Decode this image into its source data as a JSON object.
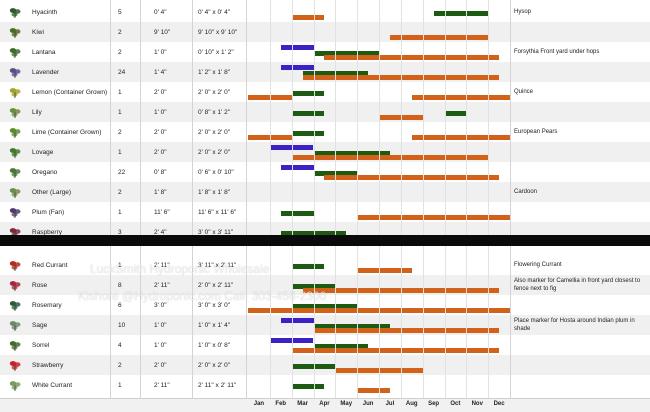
{
  "legend_colors": {
    "sow_indoors": "#3b22c4",
    "sow_outdoors": "#1e5b12",
    "harvest": "#d2611a"
  },
  "months": [
    "Jan",
    "Feb",
    "Mar",
    "Apr",
    "May",
    "Jun",
    "Jul",
    "Aug",
    "Sep",
    "Oct",
    "Nov",
    "Dec"
  ],
  "watermark": {
    "line1": "LuckSmith Hydroponic Wholesale",
    "line2": "Kishore @Hydroponic.com Call: 303-456-2300"
  },
  "rows": [
    {
      "name": "Hyacinth",
      "qty": "5",
      "spacing": "0' 4\"",
      "area": "0' 4\" x 0' 4\"",
      "notes": "Hysop",
      "icon": "hyacinth-icon",
      "bars": [
        {
          "t": "sow_outdoors",
          "s": 8.5,
          "e": 11
        },
        {
          "t": "harvest",
          "s": 2,
          "e": 3.5
        }
      ]
    },
    {
      "name": "Kiwi",
      "qty": "2",
      "spacing": "9' 10\"",
      "area": "9' 10\" x 9' 10\"",
      "notes": "",
      "icon": "kiwi-icon",
      "bars": [
        {
          "t": "harvest",
          "s": 6.5,
          "e": 11
        }
      ]
    },
    {
      "name": "Lantana",
      "qty": "2",
      "spacing": "1' 0\"",
      "area": "0' 10\" x 1' 2\"",
      "notes": "Forsythia Front yard under hops",
      "icon": "lantana-icon",
      "bars": [
        {
          "t": "sow_indoors",
          "s": 1.5,
          "e": 3
        },
        {
          "t": "sow_outdoors",
          "s": 3,
          "e": 6
        },
        {
          "t": "harvest",
          "s": 3.5,
          "e": 11.5
        }
      ]
    },
    {
      "name": "Lavender",
      "qty": "24",
      "spacing": "1' 4\"",
      "area": "1' 2\" x 1' 8\"",
      "notes": "",
      "icon": "lavender-icon",
      "bars": [
        {
          "t": "sow_indoors",
          "s": 1.5,
          "e": 3
        },
        {
          "t": "sow_outdoors",
          "s": 2.5,
          "e": 5.5
        },
        {
          "t": "harvest",
          "s": 2.5,
          "e": 11.5
        }
      ]
    },
    {
      "name": "Lemon (Container Grown)",
      "qty": "1",
      "spacing": "2' 0\"",
      "area": "2' 0\" x 2' 0\"",
      "notes": "Quince",
      "icon": "lemon-icon",
      "bars": [
        {
          "t": "sow_outdoors",
          "s": 2,
          "e": 3.5
        },
        {
          "t": "harvest",
          "s": 0,
          "e": 2
        },
        {
          "t": "harvest",
          "s": 7.5,
          "e": 12
        }
      ]
    },
    {
      "name": "Lily",
      "qty": "1",
      "spacing": "1' 0\"",
      "area": "0' 8\" x 1' 2\"",
      "notes": "",
      "icon": "lily-icon",
      "bars": [
        {
          "t": "sow_outdoors",
          "s": 2,
          "e": 3.5
        },
        {
          "t": "sow_outdoors",
          "s": 9,
          "e": 10
        },
        {
          "t": "harvest",
          "s": 6,
          "e": 8
        }
      ]
    },
    {
      "name": "Lime (Container Grown)",
      "qty": "2",
      "spacing": "2' 0\"",
      "area": "2' 0\" x 2' 0\"",
      "notes": "European Pears",
      "icon": "lime-icon",
      "bars": [
        {
          "t": "sow_outdoors",
          "s": 2,
          "e": 3.5
        },
        {
          "t": "harvest",
          "s": 0,
          "e": 2
        },
        {
          "t": "harvest",
          "s": 7.5,
          "e": 12
        }
      ]
    },
    {
      "name": "Lovage",
      "qty": "1",
      "spacing": "2' 0\"",
      "area": "2' 0\" x 2' 0\"",
      "notes": "",
      "icon": "lovage-icon",
      "bars": [
        {
          "t": "sow_indoors",
          "s": 1,
          "e": 3
        },
        {
          "t": "sow_outdoors",
          "s": 3,
          "e": 6.5
        },
        {
          "t": "harvest",
          "s": 2,
          "e": 11
        }
      ]
    },
    {
      "name": "Oregano",
      "qty": "22",
      "spacing": "0' 8\"",
      "area": "0' 6\" x 0' 10\"",
      "notes": "",
      "icon": "oregano-icon",
      "bars": [
        {
          "t": "sow_indoors",
          "s": 1.5,
          "e": 3
        },
        {
          "t": "sow_outdoors",
          "s": 3,
          "e": 5
        },
        {
          "t": "harvest",
          "s": 3.5,
          "e": 11.5
        }
      ]
    },
    {
      "name": "Other (Large)",
      "qty": "2",
      "spacing": "1' 8\"",
      "area": "1' 8\" x 1' 8\"",
      "notes": "Cardoon",
      "icon": "other-large-icon",
      "bars": []
    },
    {
      "name": "Plum (Fan)",
      "qty": "1",
      "spacing": "11' 6\"",
      "area": "11' 6\" x 11' 6\"",
      "notes": "",
      "icon": "plum-icon",
      "bars": [
        {
          "t": "sow_outdoors",
          "s": 1.5,
          "e": 3
        },
        {
          "t": "harvest",
          "s": 5,
          "e": 12
        }
      ]
    },
    {
      "name": "Raspberry",
      "qty": "3",
      "spacing": "2' 4\"",
      "area": "3' 0\" x 3' 11\"",
      "notes": "",
      "icon": "raspberry-icon",
      "bars": [
        {
          "t": "sow_outdoors",
          "s": 1.5,
          "e": 4.5
        },
        {
          "t": "harvest",
          "s": 5,
          "e": 11.5
        }
      ]
    },
    {
      "name": "Red Currant",
      "qty": "1",
      "spacing": "2' 11\"",
      "area": "3' 11\" x 2' 11\"",
      "notes": "Flowering Currant",
      "icon": "red-currant-icon",
      "bars": [
        {
          "t": "sow_outdoors",
          "s": 2,
          "e": 3.5
        },
        {
          "t": "harvest",
          "s": 5,
          "e": 7.5
        }
      ]
    },
    {
      "name": "Rose",
      "qty": "8",
      "spacing": "2' 11\"",
      "area": "2' 0\" x 2' 11\"",
      "notes": "Also marker for Camellia in front yard closest to fence next to fig",
      "icon": "rose-icon",
      "bars": [
        {
          "t": "sow_outdoors",
          "s": 2,
          "e": 4
        },
        {
          "t": "harvest",
          "s": 2.5,
          "e": 11.5
        }
      ]
    },
    {
      "name": "Rosemary",
      "qty": "6",
      "spacing": "3' 0\"",
      "area": "3' 0\" x 3' 0\"",
      "notes": "",
      "icon": "rosemary-icon",
      "bars": [
        {
          "t": "sow_outdoors",
          "s": 2,
          "e": 5
        },
        {
          "t": "harvest",
          "s": 0,
          "e": 12
        }
      ]
    },
    {
      "name": "Sage",
      "qty": "10",
      "spacing": "1' 0\"",
      "area": "1' 0\" x 1' 4\"",
      "notes": "Place marker for Hosta around Indian plum in shade",
      "icon": "sage-icon",
      "bars": [
        {
          "t": "sow_indoors",
          "s": 1.5,
          "e": 3
        },
        {
          "t": "sow_outdoors",
          "s": 3,
          "e": 6.5
        },
        {
          "t": "harvest",
          "s": 3,
          "e": 11.5
        }
      ]
    },
    {
      "name": "Sorrel",
      "qty": "4",
      "spacing": "1' 0\"",
      "area": "1' 0\" x 0' 8\"",
      "notes": "",
      "icon": "sorrel-icon",
      "bars": [
        {
          "t": "sow_indoors",
          "s": 1,
          "e": 3
        },
        {
          "t": "sow_outdoors",
          "s": 3,
          "e": 5.5
        },
        {
          "t": "harvest",
          "s": 2,
          "e": 11.5
        }
      ]
    },
    {
      "name": "Strawberry",
      "qty": "2",
      "spacing": "2' 0\"",
      "area": "2' 0\" x 2' 0\"",
      "notes": "",
      "icon": "strawberry-icon",
      "bars": [
        {
          "t": "sow_outdoors",
          "s": 2,
          "e": 4
        },
        {
          "t": "harvest",
          "s": 4,
          "e": 8
        }
      ]
    },
    {
      "name": "White Currant",
      "qty": "1",
      "spacing": "2' 11\"",
      "area": "2' 11\" x 2' 11\"",
      "notes": "",
      "icon": "white-currant-icon",
      "bars": [
        {
          "t": "sow_outdoors",
          "s": 2,
          "e": 3.5
        },
        {
          "t": "harvest",
          "s": 5,
          "e": 6.5
        }
      ]
    }
  ]
}
